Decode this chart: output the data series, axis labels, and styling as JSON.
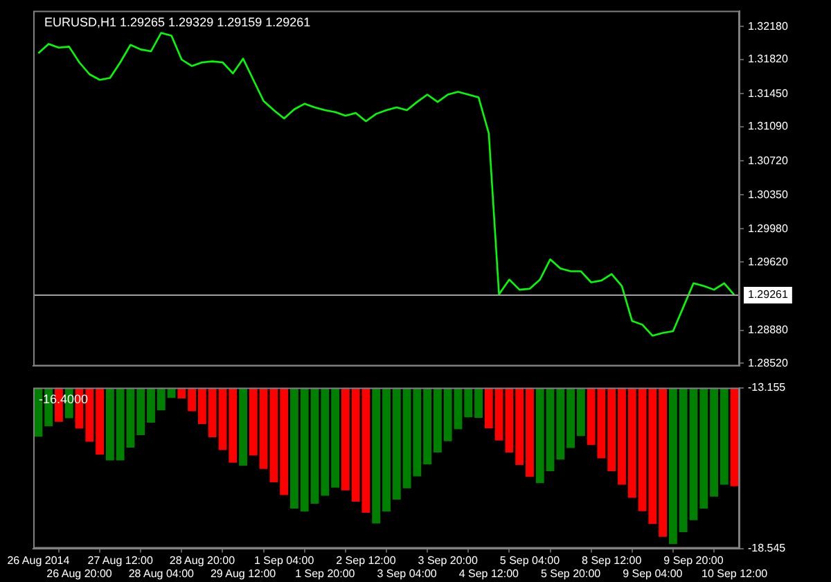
{
  "chart_data": [
    {
      "type": "line",
      "title": "EURUSD,H1 1.29265 1.29329 1.29159 1.29261",
      "categories": [
        null,
        null,
        null,
        null,
        null,
        null,
        null,
        null,
        null,
        null,
        null,
        null,
        null,
        null,
        null,
        null,
        null,
        null,
        null,
        null,
        null,
        null,
        null,
        null,
        null,
        null,
        null,
        null,
        null,
        null,
        null,
        null,
        null,
        null,
        null,
        null,
        null,
        null,
        null,
        null,
        null,
        null,
        null,
        null,
        null,
        null,
        null,
        null,
        null,
        null,
        null,
        null,
        null,
        null,
        null,
        null,
        null,
        null,
        null,
        null,
        null,
        null,
        null,
        null,
        null,
        null,
        null,
        null,
        null
      ],
      "series": [
        {
          "color": "#00ff00",
          "values": [
            1.3189,
            1.3199,
            1.3195,
            1.3196,
            1.3179,
            1.3166,
            1.316,
            1.3162,
            1.3179,
            1.3198,
            1.3193,
            1.3191,
            1.3211,
            1.3208,
            1.3182,
            1.3175,
            1.3179,
            1.318,
            1.3179,
            1.3167,
            1.3183,
            1.316,
            1.3137,
            1.3127,
            1.3118,
            1.3128,
            1.3134,
            1.313,
            1.3127,
            1.3125,
            1.3121,
            1.3124,
            1.3115,
            1.3123,
            1.3127,
            1.313,
            1.3127,
            1.3136,
            1.3144,
            1.3136,
            1.3144,
            1.3147,
            1.3144,
            1.3141,
            1.3102,
            1.2927,
            1.2943,
            1.2932,
            1.2933,
            1.2943,
            1.2965,
            1.2955,
            1.2952,
            1.2952,
            1.294,
            1.2942,
            1.2949,
            1.2936,
            1.2898,
            1.2894,
            1.2882,
            1.2885,
            1.2887,
            1.2913,
            1.2939,
            1.2936,
            1.2932,
            1.2939,
            1.2926
          ]
        }
      ],
      "ylim": [
        1.2849,
        1.3235
      ],
      "yticks": [
        {
          "value": 1.3218,
          "label": "1.32180"
        },
        {
          "value": 1.3182,
          "label": "1.31820"
        },
        {
          "value": 1.3145,
          "label": "1.31450"
        },
        {
          "value": 1.3109,
          "label": "1.31090"
        },
        {
          "value": 1.3072,
          "label": "1.30720"
        },
        {
          "value": 1.3035,
          "label": "1.30350"
        },
        {
          "value": 1.2998,
          "label": "1.29980"
        },
        {
          "value": 1.2962,
          "label": "1.29620"
        },
        {
          "value": 1.2888,
          "label": "1.28880"
        },
        {
          "value": 1.2852,
          "label": "1.28520"
        }
      ],
      "ref_lines": [
        {
          "axis": "y",
          "value": 1.29261,
          "label": "1.29261",
          "color": "#a0a0a0"
        }
      ],
      "marker": "none",
      "grid": false,
      "legend": false,
      "tick_labels": "y"
    },
    {
      "type": "bar",
      "annotations": [
        "-16.4000"
      ],
      "categories": [
        "26 Aug 2014",
        null,
        null,
        null,
        "26 Aug 20:00",
        null,
        null,
        null,
        "27 Aug 12:00",
        null,
        null,
        null,
        "28 Aug 04:00",
        null,
        null,
        null,
        "28 Aug 20:00",
        null,
        null,
        null,
        "29 Aug 12:00",
        null,
        null,
        null,
        "1 Sep 04:00",
        null,
        null,
        null,
        "1 Sep 20:00",
        null,
        null,
        null,
        "2 Sep 12:00",
        null,
        null,
        null,
        "3 Sep 04:00",
        null,
        null,
        null,
        "3 Sep 20:00",
        null,
        null,
        null,
        "4 Sep 12:00",
        null,
        null,
        null,
        "5 Sep 04:00",
        null,
        null,
        null,
        "5 Sep 20:00",
        null,
        null,
        null,
        "8 Sep 12:00",
        null,
        null,
        null,
        "9 Sep 04:00",
        null,
        null,
        null,
        "9 Sep 20:00",
        null,
        null,
        null,
        "10 Sep 12:00"
      ],
      "base": [
        -13.155,
        -13.155,
        -13.155,
        -13.155,
        -13.155,
        -13.155,
        -13.155,
        -13.155,
        -13.155,
        -13.155,
        -13.155,
        -13.155,
        -13.155,
        -13.155,
        -13.155,
        -13.155,
        -13.155,
        -13.155,
        -13.155,
        -13.155,
        -13.155,
        -13.155,
        -13.155,
        -13.155,
        -13.155,
        -13.155,
        -13.155,
        -13.155,
        -13.155,
        -13.155,
        -13.155,
        -13.155,
        -13.155,
        -13.155,
        -13.155,
        -13.155,
        -13.155,
        -13.155,
        -13.155,
        -13.155,
        -13.155,
        -13.155,
        -13.155,
        -13.155,
        -13.155,
        -13.155,
        -13.155,
        -13.155,
        -13.155,
        -13.155,
        -13.155,
        -13.155,
        -13.155,
        -13.155,
        -13.155,
        -13.155,
        -13.155,
        -13.155,
        -13.155,
        -13.155,
        -13.155,
        -13.155,
        -13.155,
        -13.155,
        -13.155,
        -13.155,
        -13.155,
        -13.155,
        -13.155
      ],
      "values": [
        -1.64,
        -1.29,
        -1.14,
        -1.02,
        -1.37,
        -1.81,
        -2.24,
        -2.44,
        -2.44,
        -2.01,
        -1.59,
        -1.17,
        -0.76,
        -0.34,
        -0.36,
        -0.79,
        -1.22,
        -1.66,
        -2.09,
        -2.51,
        -2.62,
        -2.27,
        -2.72,
        -3.17,
        -3.6,
        -4.05,
        -4.15,
        -3.89,
        -3.62,
        -3.35,
        -3.44,
        -3.82,
        -4.19,
        -4.55,
        -4.15,
        -3.75,
        -3.37,
        -2.97,
        -2.57,
        -2.17,
        -1.79,
        -1.39,
        -0.99,
        -1.01,
        -1.36,
        -1.77,
        -2.17,
        -2.59,
        -2.99,
        -3.2,
        -2.8,
        -2.41,
        -2.02,
        -1.62,
        -1.92,
        -2.37,
        -2.8,
        -3.25,
        -3.69,
        -4.14,
        -4.57,
        -5.0,
        -5.24,
        -4.84,
        -4.44,
        -4.05,
        -3.65,
        -3.25,
        -3.3
      ],
      "colors": [
        "#008000",
        "#008000",
        "#ff0000",
        "#008000",
        "#ff0000",
        "#ff0000",
        "#ff0000",
        "#008000",
        "#008000",
        "#008000",
        "#008000",
        "#008000",
        "#008000",
        "#008000",
        "#ff0000",
        "#ff0000",
        "#ff0000",
        "#ff0000",
        "#ff0000",
        "#ff0000",
        "#008000",
        "#ff0000",
        "#ff0000",
        "#ff0000",
        "#ff0000",
        "#008000",
        "#008000",
        "#008000",
        "#008000",
        "#008000",
        "#ff0000",
        "#ff0000",
        "#ff0000",
        "#008000",
        "#008000",
        "#008000",
        "#008000",
        "#008000",
        "#008000",
        "#008000",
        "#008000",
        "#008000",
        "#008000",
        "#008000",
        "#ff0000",
        "#ff0000",
        "#ff0000",
        "#ff0000",
        "#ff0000",
        "#008000",
        "#008000",
        "#008000",
        "#008000",
        "#008000",
        "#ff0000",
        "#ff0000",
        "#ff0000",
        "#ff0000",
        "#ff0000",
        "#ff0000",
        "#ff0000",
        "#ff0000",
        "#008000",
        "#008000",
        "#008000",
        "#008000",
        "#008000",
        "#008000",
        "#ff0000"
      ],
      "ylim": [
        -18.545,
        -13.155
      ],
      "yticks": [
        -18.545,
        -13.155
      ],
      "grid": false,
      "legend": false
    }
  ]
}
